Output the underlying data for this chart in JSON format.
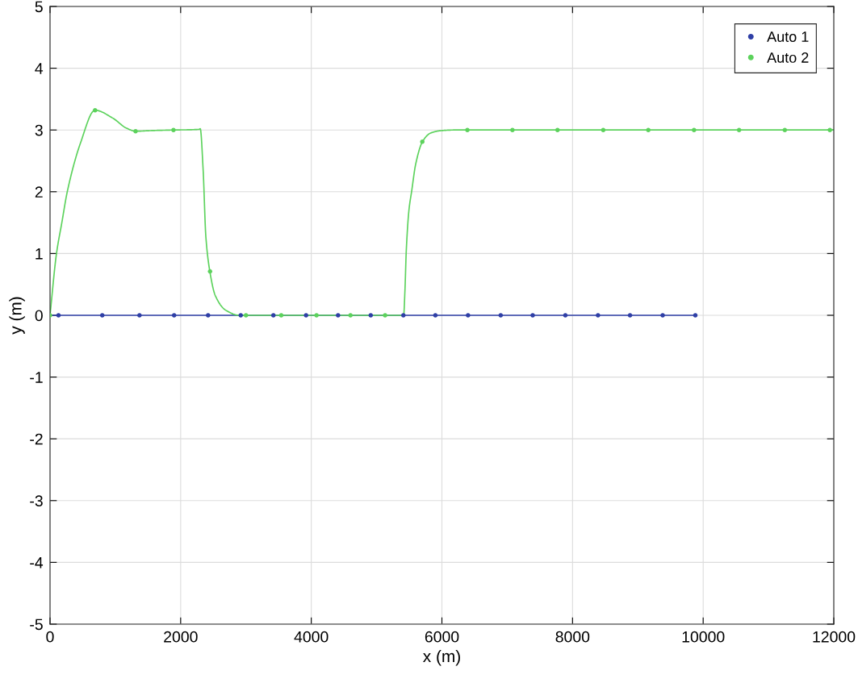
{
  "chart_data": {
    "type": "line",
    "xlabel": "x (m)",
    "ylabel": "y (m)",
    "xlim": [
      0,
      12000
    ],
    "ylim": [
      -5,
      5
    ],
    "xticks": [
      0,
      2000,
      4000,
      6000,
      8000,
      10000,
      12000
    ],
    "yticks": [
      -5,
      -4,
      -3,
      -2,
      -1,
      0,
      1,
      2,
      3,
      4,
      5
    ],
    "grid": true,
    "legend": "top right",
    "series": [
      {
        "color": "#2f3fa6",
        "x": [
          0,
          9880
        ],
        "values": [
          0,
          0
        ]
      },
      {
        "type": "scatter",
        "name": "Auto 1",
        "color": "#2f3fa6",
        "marker": "circle",
        "x": [
          130,
          800,
          1370,
          1900,
          2420,
          2920,
          3420,
          3920,
          4410,
          4910,
          5410,
          5900,
          6400,
          6900,
          7390,
          7890,
          8390,
          8880,
          9380,
          9880
        ],
        "values": [
          0,
          0,
          0,
          0,
          0,
          0,
          0,
          0,
          0,
          0,
          0,
          0,
          0,
          0,
          0,
          0,
          0,
          0,
          0,
          0
        ]
      },
      {
        "color": "#5cd25c",
        "x": [
          0,
          99,
          181,
          264,
          470,
          688,
          964,
          1170,
          1314,
          1541,
          1891,
          2280,
          2300,
          2344,
          2386,
          2447,
          2530,
          2694,
          2900,
          5414,
          5434,
          5455,
          5496,
          5537,
          5599,
          5702,
          5826,
          5991,
          6200,
          12000
        ],
        "values": [
          0,
          1.0,
          1.5,
          2.0,
          2.8,
          3.32,
          3.19,
          3.03,
          2.98,
          2.99,
          3.0,
          3.01,
          3.02,
          2.36,
          1.27,
          0.71,
          0.32,
          0.08,
          0,
          0,
          0.4,
          1.06,
          1.71,
          2.01,
          2.45,
          2.81,
          2.95,
          2.99,
          3.0,
          3.0
        ]
      },
      {
        "type": "scatter",
        "name": "Auto 2",
        "color": "#5cd25c",
        "marker": "circle",
        "x": [
          0,
          690,
          1310,
          1890,
          2450,
          3000,
          3540,
          4080,
          4600,
          5130,
          5700,
          6390,
          7080,
          7770,
          8470,
          9160,
          9860,
          10550,
          11250,
          11940
        ],
        "values": [
          0,
          3.32,
          2.98,
          3.0,
          0.71,
          0,
          0,
          0,
          0,
          0,
          2.81,
          3.0,
          3.0,
          3.0,
          3.0,
          3.0,
          3.0,
          3.0,
          3.0,
          3.0
        ]
      }
    ]
  }
}
